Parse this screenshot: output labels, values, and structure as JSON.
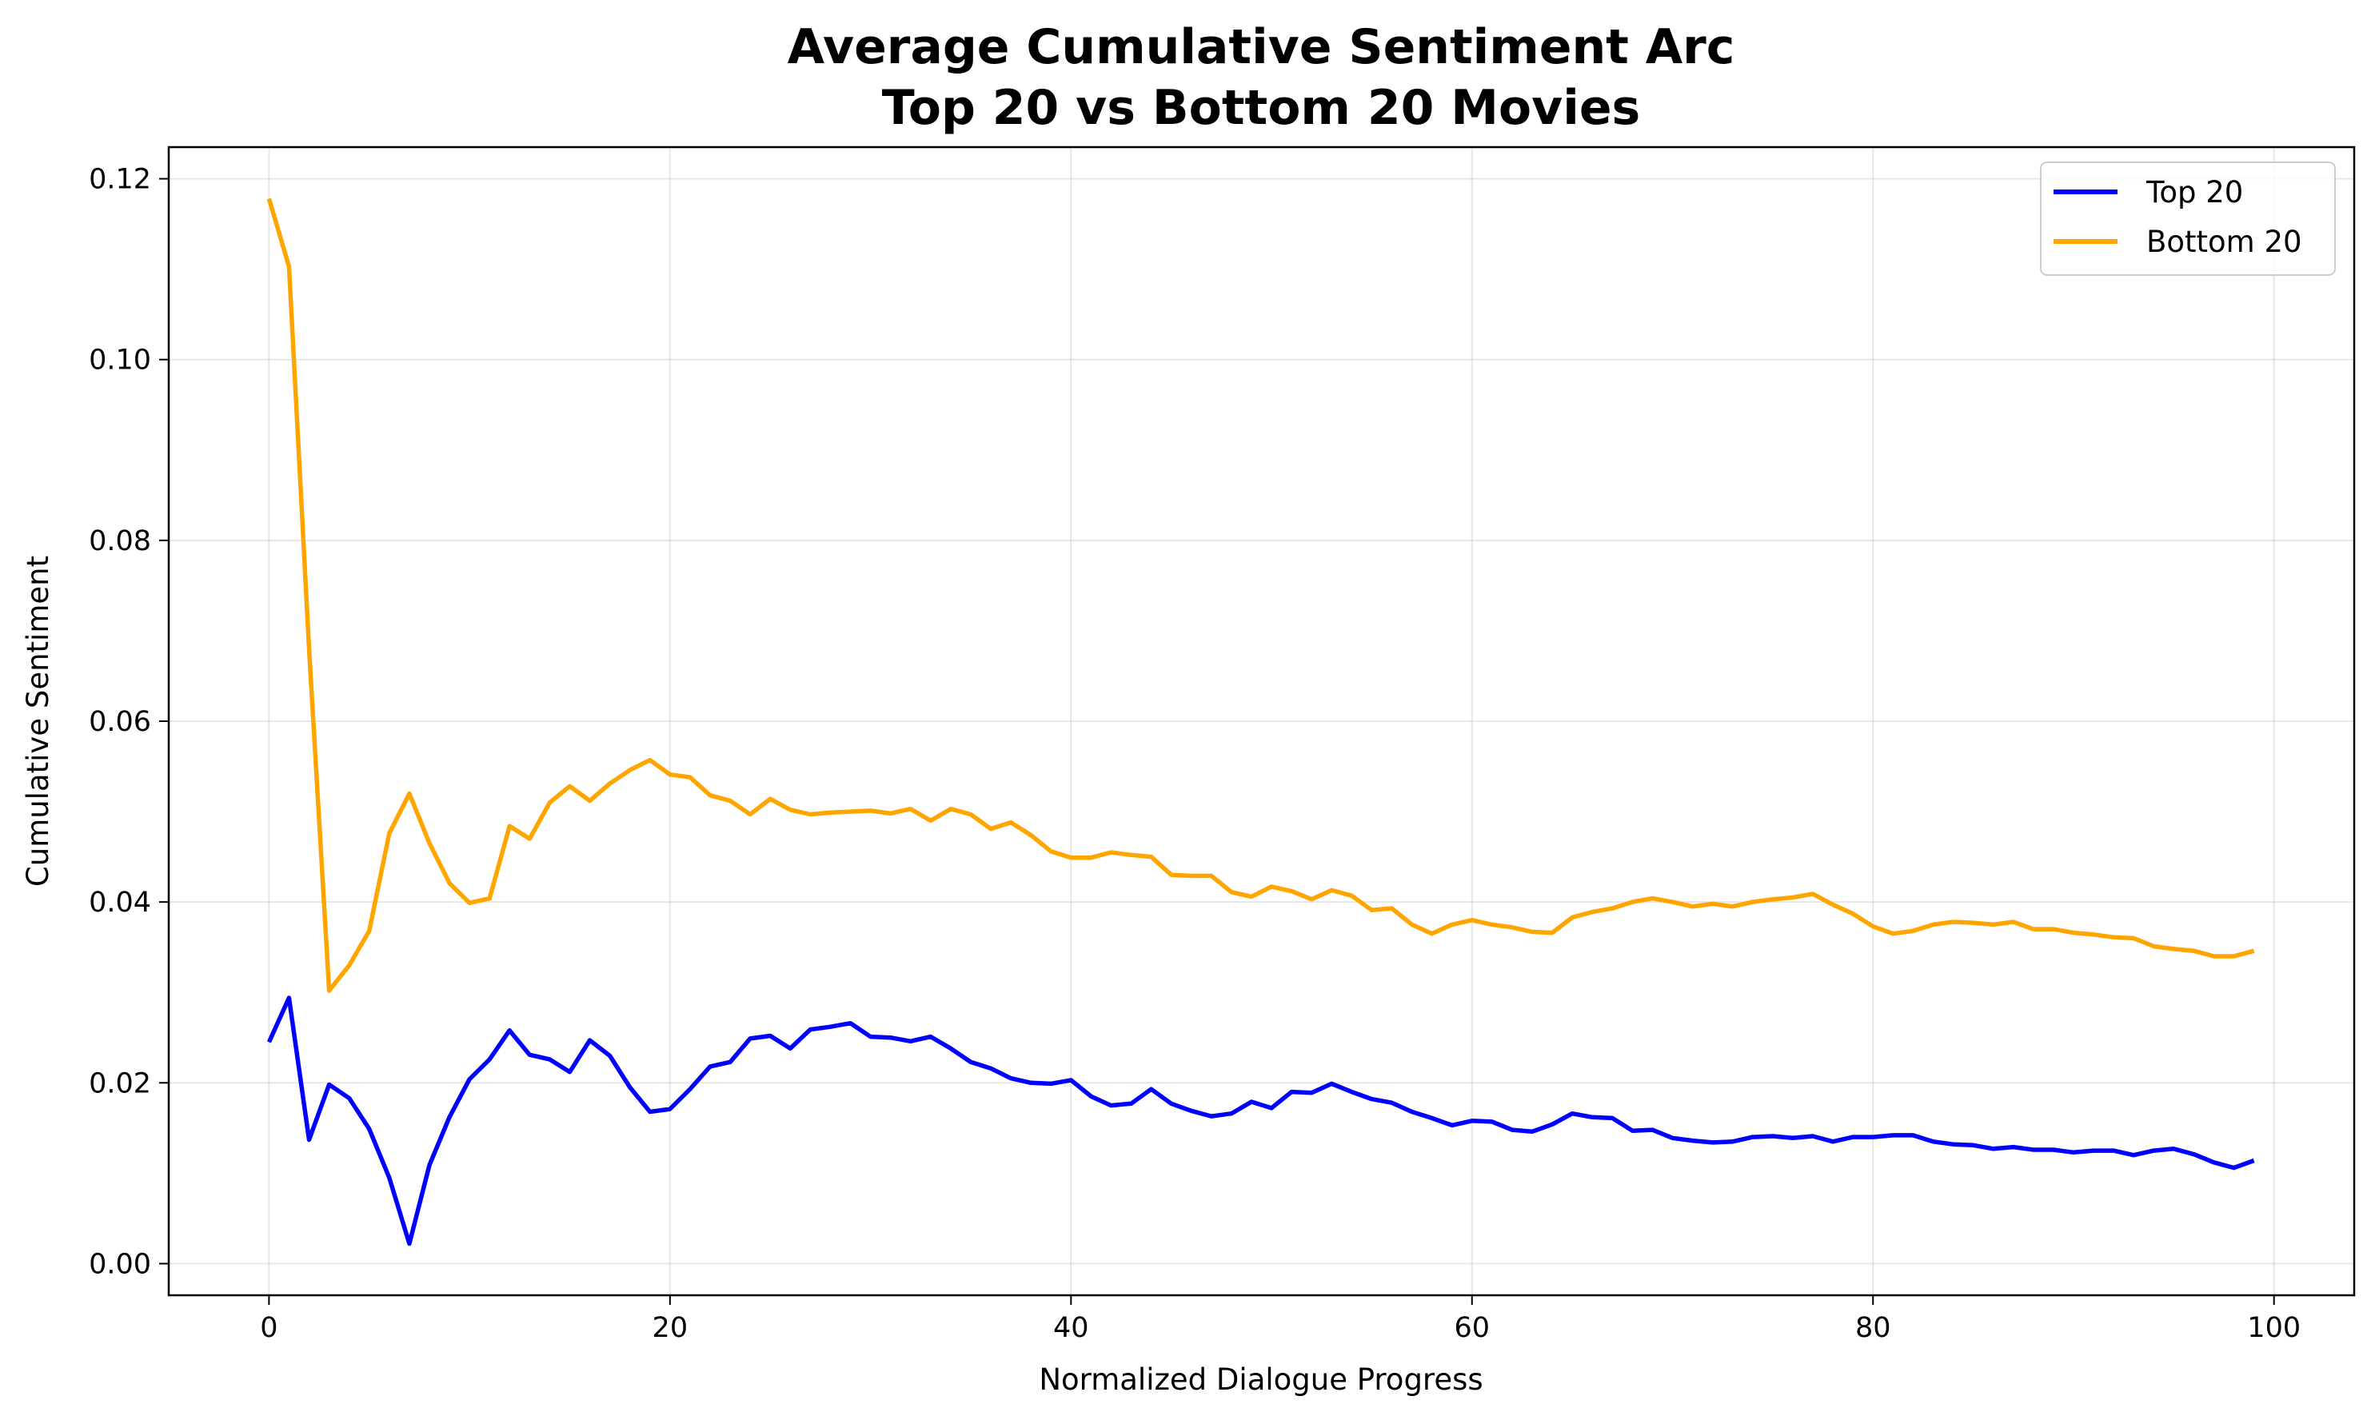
{
  "chart_data": {
    "type": "line",
    "title": "Average Cumulative Sentiment Arc",
    "subtitle": "Top 20 vs Bottom 20 Movies",
    "xlabel": "Normalized Dialogue Progress",
    "ylabel": "Cumulative Sentiment",
    "xlim": [
      -5,
      104
    ],
    "ylim": [
      -0.0035,
      0.1235
    ],
    "xticks": [
      0,
      20,
      40,
      60,
      80,
      100
    ],
    "xtick_labels": [
      "0",
      "20",
      "40",
      "60",
      "80",
      "100"
    ],
    "yticks": [
      0.0,
      0.02,
      0.04,
      0.06,
      0.08,
      0.1,
      0.12
    ],
    "ytick_labels": [
      "0.00",
      "0.02",
      "0.04",
      "0.06",
      "0.08",
      "0.10",
      "0.12"
    ],
    "grid": true,
    "legend_position": "top-right",
    "x": [
      0,
      1,
      2,
      3,
      4,
      5,
      6,
      7,
      8,
      9,
      10,
      11,
      12,
      13,
      14,
      15,
      16,
      17,
      18,
      19,
      20,
      21,
      22,
      23,
      24,
      25,
      26,
      27,
      28,
      29,
      30,
      31,
      32,
      33,
      34,
      35,
      36,
      37,
      38,
      39,
      40,
      41,
      42,
      43,
      44,
      45,
      46,
      47,
      48,
      49,
      50,
      51,
      52,
      53,
      54,
      55,
      56,
      57,
      58,
      59,
      60,
      61,
      62,
      63,
      64,
      65,
      66,
      67,
      68,
      69,
      70,
      71,
      72,
      73,
      74,
      75,
      76,
      77,
      78,
      79,
      80,
      81,
      82,
      83,
      84,
      85,
      86,
      87,
      88,
      89,
      90,
      91,
      92,
      93,
      94,
      95,
      96,
      97,
      98,
      99
    ],
    "series": [
      {
        "name": "Top 20",
        "color": "#0000ff",
        "values": [
          0.0245,
          0.0294,
          0.0137,
          0.0198,
          0.0183,
          0.0149,
          0.0095,
          0.0022,
          0.0109,
          0.0162,
          0.0204,
          0.0226,
          0.0258,
          0.0231,
          0.0226,
          0.0212,
          0.0247,
          0.023,
          0.0195,
          0.0168,
          0.0171,
          0.0193,
          0.0218,
          0.0223,
          0.0249,
          0.0252,
          0.0238,
          0.0259,
          0.0262,
          0.0266,
          0.0251,
          0.025,
          0.0246,
          0.0251,
          0.0238,
          0.0223,
          0.0216,
          0.0205,
          0.02,
          0.0199,
          0.0203,
          0.0185,
          0.0175,
          0.0177,
          0.0193,
          0.0177,
          0.0169,
          0.0163,
          0.0166,
          0.0179,
          0.0172,
          0.019,
          0.0189,
          0.0199,
          0.019,
          0.0182,
          0.0178,
          0.0168,
          0.0161,
          0.0153,
          0.0158,
          0.0157,
          0.0148,
          0.0146,
          0.0154,
          0.0166,
          0.0162,
          0.0161,
          0.0147,
          0.0148,
          0.0139,
          0.0136,
          0.0134,
          0.0135,
          0.014,
          0.0141,
          0.0139,
          0.0141,
          0.0135,
          0.014,
          0.014,
          0.0142,
          0.0142,
          0.0135,
          0.0132,
          0.0131,
          0.0127,
          0.0129,
          0.0126,
          0.0126,
          0.0123,
          0.0125,
          0.0125,
          0.012,
          0.0125,
          0.0127,
          0.0121,
          0.0112,
          0.0106,
          0.0114
        ]
      },
      {
        "name": "Bottom 20",
        "color": "#ffa500",
        "values": [
          0.1178,
          0.1103,
          0.068,
          0.0302,
          0.033,
          0.0368,
          0.0476,
          0.052,
          0.0465,
          0.0421,
          0.0399,
          0.0404,
          0.0484,
          0.047,
          0.051,
          0.0528,
          0.0512,
          0.0531,
          0.0546,
          0.0557,
          0.0541,
          0.0538,
          0.0518,
          0.0512,
          0.0497,
          0.0514,
          0.0502,
          0.0497,
          0.0499,
          0.05,
          0.0501,
          0.0498,
          0.0503,
          0.049,
          0.0503,
          0.0497,
          0.0481,
          0.0488,
          0.0474,
          0.0456,
          0.0449,
          0.0449,
          0.0455,
          0.0452,
          0.045,
          0.043,
          0.0429,
          0.0429,
          0.0411,
          0.0406,
          0.0417,
          0.0412,
          0.0403,
          0.0413,
          0.0407,
          0.0391,
          0.0393,
          0.0375,
          0.0365,
          0.0375,
          0.038,
          0.0375,
          0.0372,
          0.0367,
          0.0366,
          0.0383,
          0.0389,
          0.0393,
          0.04,
          0.0404,
          0.04,
          0.0395,
          0.0398,
          0.0395,
          0.04,
          0.0403,
          0.0405,
          0.0409,
          0.0397,
          0.0387,
          0.0373,
          0.0365,
          0.0368,
          0.0375,
          0.0378,
          0.0377,
          0.0375,
          0.0378,
          0.037,
          0.037,
          0.0366,
          0.0364,
          0.0361,
          0.036,
          0.0351,
          0.0348,
          0.0346,
          0.034,
          0.034,
          0.0346
        ]
      }
    ]
  }
}
